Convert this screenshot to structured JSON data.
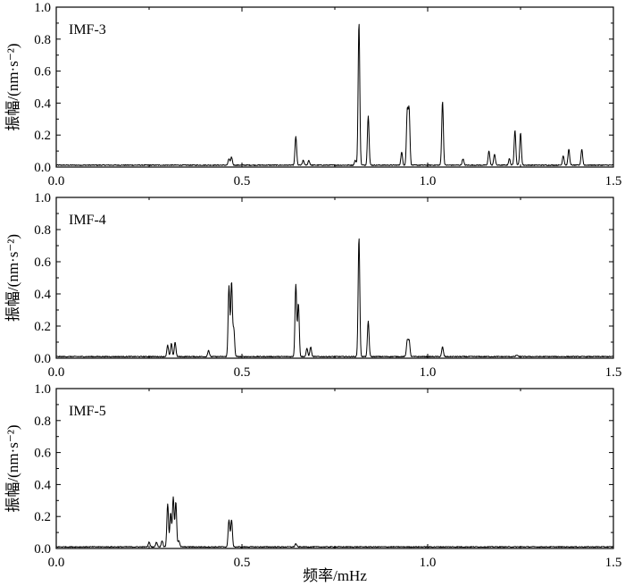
{
  "chart_data": [
    {
      "type": "line",
      "panel_label": "IMF-3",
      "ylabel": "振幅/(nm·s⁻²)",
      "xlabel": "",
      "xlim": [
        0,
        1.5
      ],
      "ylim": [
        0,
        1.0
      ],
      "x_ticks": [
        "0.0",
        "0.5",
        "1.0",
        "1.5"
      ],
      "y_ticks": [
        "0.0",
        "0.2",
        "0.4",
        "0.6",
        "0.8",
        "1.0"
      ],
      "baseline": 0.012,
      "series": [
        {
          "peaks": [
            {
              "x": 0.465,
              "y": 0.04
            },
            {
              "x": 0.472,
              "y": 0.05
            },
            {
              "x": 0.645,
              "y": 0.18
            },
            {
              "x": 0.665,
              "y": 0.03
            },
            {
              "x": 0.68,
              "y": 0.03
            },
            {
              "x": 0.805,
              "y": 0.03
            },
            {
              "x": 0.815,
              "y": 0.89
            },
            {
              "x": 0.84,
              "y": 0.31
            },
            {
              "x": 0.93,
              "y": 0.08
            },
            {
              "x": 0.945,
              "y": 0.33
            },
            {
              "x": 0.95,
              "y": 0.34
            },
            {
              "x": 1.04,
              "y": 0.4
            },
            {
              "x": 1.095,
              "y": 0.04
            },
            {
              "x": 1.165,
              "y": 0.09
            },
            {
              "x": 1.18,
              "y": 0.07
            },
            {
              "x": 1.22,
              "y": 0.04
            },
            {
              "x": 1.235,
              "y": 0.22
            },
            {
              "x": 1.25,
              "y": 0.2
            },
            {
              "x": 1.365,
              "y": 0.06
            },
            {
              "x": 1.38,
              "y": 0.1
            },
            {
              "x": 1.415,
              "y": 0.1
            }
          ]
        }
      ]
    },
    {
      "type": "line",
      "panel_label": "IMF-4",
      "ylabel": "振幅/(nm·s⁻²)",
      "xlabel": "",
      "xlim": [
        0,
        1.5
      ],
      "ylim": [
        0,
        1.0
      ],
      "x_ticks": [
        "0.0",
        "0.5",
        "1.0",
        "1.5"
      ],
      "y_ticks": [
        "0.0",
        "0.2",
        "0.4",
        "0.6",
        "0.8",
        "1.0"
      ],
      "baseline": 0.01,
      "series": [
        {
          "peaks": [
            {
              "x": 0.3,
              "y": 0.07
            },
            {
              "x": 0.31,
              "y": 0.08
            },
            {
              "x": 0.32,
              "y": 0.09
            },
            {
              "x": 0.41,
              "y": 0.04
            },
            {
              "x": 0.465,
              "y": 0.44
            },
            {
              "x": 0.472,
              "y": 0.46
            },
            {
              "x": 0.478,
              "y": 0.17
            },
            {
              "x": 0.645,
              "y": 0.45
            },
            {
              "x": 0.652,
              "y": 0.33
            },
            {
              "x": 0.675,
              "y": 0.05
            },
            {
              "x": 0.685,
              "y": 0.06
            },
            {
              "x": 0.815,
              "y": 0.74
            },
            {
              "x": 0.84,
              "y": 0.22
            },
            {
              "x": 0.945,
              "y": 0.1
            },
            {
              "x": 0.95,
              "y": 0.1
            },
            {
              "x": 1.04,
              "y": 0.06
            },
            {
              "x": 1.24,
              "y": 0.01
            }
          ]
        }
      ]
    },
    {
      "type": "line",
      "panel_label": "IMF-5",
      "ylabel": "振幅/(nm·s⁻²)",
      "xlabel": "频率/mHz",
      "xlim": [
        0,
        1.5
      ],
      "ylim": [
        0,
        1.0
      ],
      "x_ticks": [
        "0.0",
        "0.5",
        "1.0",
        "1.5"
      ],
      "y_ticks": [
        "0.0",
        "0.2",
        "0.4",
        "0.6",
        "0.8",
        "1.0"
      ],
      "baseline": 0.01,
      "series": [
        {
          "peaks": [
            {
              "x": 0.25,
              "y": 0.03
            },
            {
              "x": 0.27,
              "y": 0.03
            },
            {
              "x": 0.285,
              "y": 0.04
            },
            {
              "x": 0.3,
              "y": 0.27
            },
            {
              "x": 0.308,
              "y": 0.21
            },
            {
              "x": 0.315,
              "y": 0.31
            },
            {
              "x": 0.322,
              "y": 0.28
            },
            {
              "x": 0.33,
              "y": 0.04
            },
            {
              "x": 0.465,
              "y": 0.17
            },
            {
              "x": 0.472,
              "y": 0.17
            },
            {
              "x": 0.645,
              "y": 0.02
            }
          ]
        }
      ]
    }
  ]
}
